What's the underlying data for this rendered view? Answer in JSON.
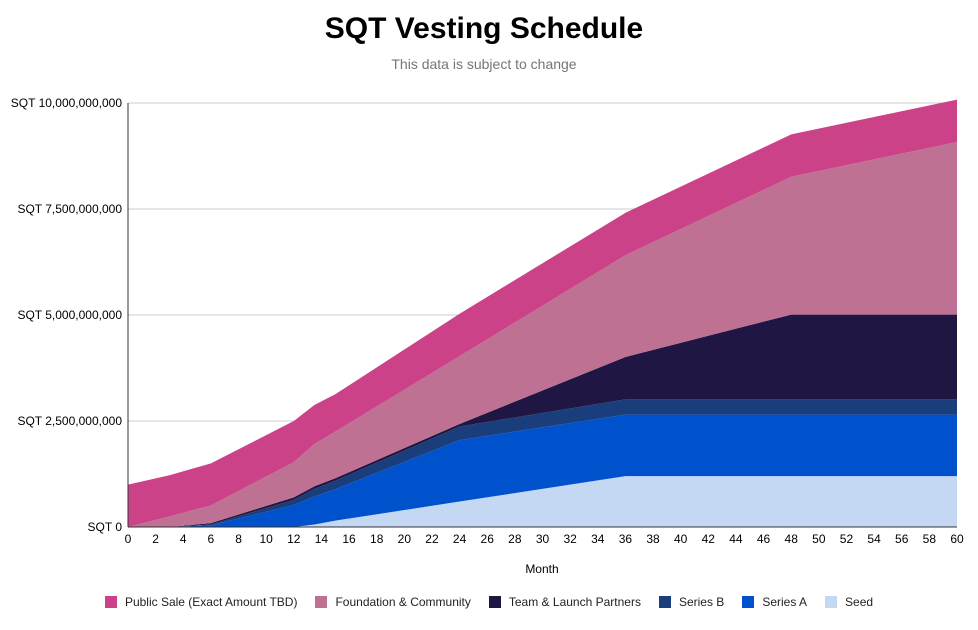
{
  "chart_data": {
    "type": "area",
    "stacked": true,
    "title": "SQT Vesting Schedule",
    "subtitle": "This data is subject to change",
    "xlabel": "Month",
    "ylabel": "",
    "xlim": [
      0,
      60
    ],
    "ylim": [
      0,
      10000000000
    ],
    "x_ticks": [
      0,
      2,
      4,
      6,
      8,
      10,
      12,
      14,
      16,
      18,
      20,
      22,
      24,
      26,
      28,
      30,
      32,
      34,
      36,
      38,
      40,
      42,
      44,
      46,
      48,
      50,
      52,
      54,
      56,
      58,
      60
    ],
    "y_ticks": [
      0,
      2500000000,
      5000000000,
      7500000000,
      10000000000
    ],
    "y_tick_labels": [
      "SQT 0",
      "SQT 2,500,000,000",
      "SQT 5,000,000,000",
      "SQT 7,500,000,000",
      "SQT 10,000,000,000"
    ],
    "grid": true,
    "legend_position": "bottom",
    "x": [
      0,
      3,
      6,
      12,
      13.5,
      15,
      24,
      36,
      48,
      60
    ],
    "series": [
      {
        "name": "Seed",
        "color": "#c5d8f3",
        "values": [
          0,
          0,
          0,
          0,
          60000000,
          150000000,
          600000000,
          1200000000,
          1200000000,
          1200000000
        ]
      },
      {
        "name": "Series A",
        "color": "#0052cc",
        "values": [
          0,
          0,
          40000000,
          520000000,
          660000000,
          740000000,
          1450000000,
          1450000000,
          1450000000,
          1450000000
        ]
      },
      {
        "name": "Series B",
        "color": "#1a3d7c",
        "values": [
          0,
          0,
          20000000,
          120000000,
          180000000,
          200000000,
          320000000,
          360000000,
          360000000,
          360000000
        ]
      },
      {
        "name": "Team & Launch Partners",
        "color": "#201643",
        "values": [
          0,
          0,
          30000000,
          60000000,
          60000000,
          60000000,
          60000000,
          1000000000,
          2000000000,
          2000000000
        ]
      },
      {
        "name": "Foundation & Community",
        "color": "#be7193",
        "values": [
          0,
          250000000,
          420000000,
          830000000,
          1000000000,
          1100000000,
          1600000000,
          2400000000,
          3250000000,
          4070000000
        ]
      },
      {
        "name": "Public Sale (Exact Amount TBD)",
        "color": "#cc4289",
        "values": [
          1000000000,
          970000000,
          990000000,
          970000000,
          920000000,
          880000000,
          1000000000,
          1000000000,
          1000000000,
          1000000000
        ]
      }
    ],
    "legend_order": [
      "Public Sale (Exact Amount TBD)",
      "Foundation & Community",
      "Team & Launch Partners",
      "Series B",
      "Series A",
      "Seed"
    ]
  }
}
